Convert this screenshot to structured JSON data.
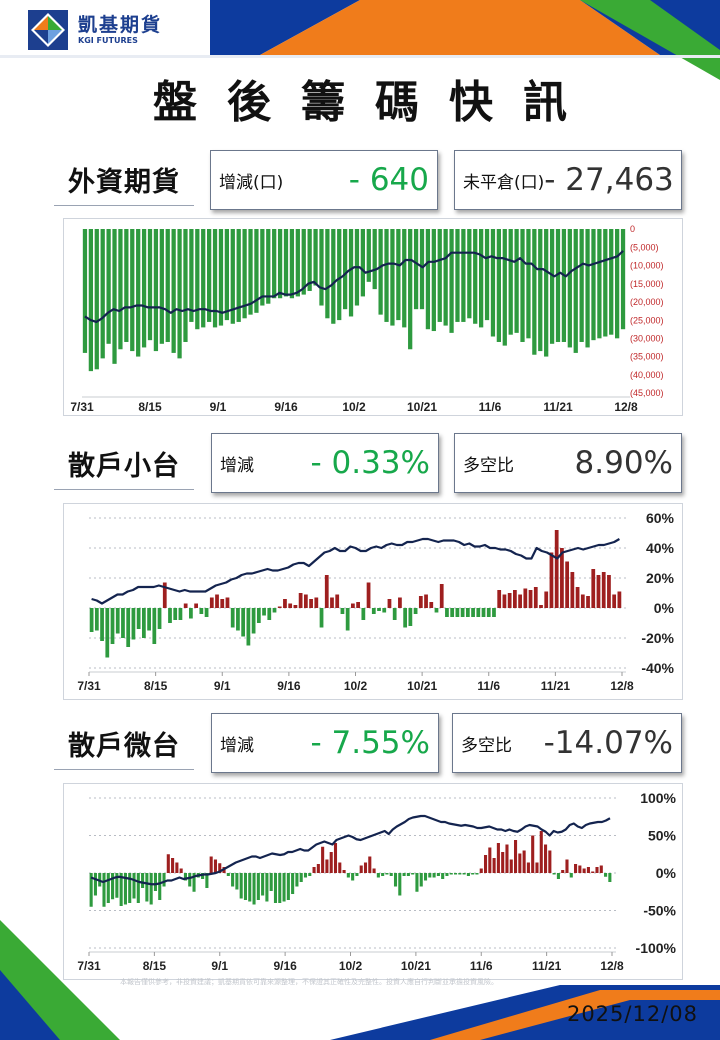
{
  "brand": {
    "name_zh": "凱基期貨",
    "name_en": "KGI FUTURES"
  },
  "colors": {
    "navy": "#1d3f8f",
    "orange": "#f07c1b",
    "green_brand": "#3aaa35",
    "bar_green": "#2e9a3f",
    "bar_red": "#9e1f1f",
    "line": "#14244f"
  },
  "title": "盤後籌碼快訊",
  "date": "2025/12/08",
  "disclaimer": "本報告僅供參考，非投資建議；凱基期貨依可靠來源整理，不保證其正確性及完整性。投資人應自行判斷並承擔投資風險。",
  "sections": [
    {
      "title": "外資期貨",
      "change_label": "增減(口)",
      "change_value": "- 640",
      "ratio_label": "未平倉(口)",
      "ratio_value": "- 27,463"
    },
    {
      "title": "散戶小台",
      "change_label": "增減",
      "change_value": "- 0.33%",
      "ratio_label": "多空比",
      "ratio_value": "8.90%"
    },
    {
      "title": "散戶微台",
      "change_label": "增減",
      "change_value": "- 7.55%",
      "ratio_label": "多空比",
      "ratio_value": "-14.07%"
    }
  ],
  "chart_data": [
    {
      "type": "bar",
      "x_labels": [
        "7/31",
        "8/15",
        "9/1",
        "9/16",
        "10/2",
        "10/21",
        "11/6",
        "11/21",
        "12/8"
      ],
      "y_tick_labels": [
        "0",
        "(5,000)",
        "(10,000)",
        "(15,000)",
        "(20,000)",
        "(25,000)",
        "(30,000)",
        "(35,000)",
        "(40,000)",
        "(45,000)"
      ],
      "ylim": [
        -45000,
        0
      ],
      "series": [
        {
          "type": "bar",
          "values": [
            -34000,
            -39000,
            -38500,
            -35500,
            -31500,
            -37000,
            -33000,
            -31000,
            -33500,
            -35000,
            -32500,
            -30500,
            -33500,
            -31500,
            -31000,
            -34000,
            -35500,
            -31000,
            -25500,
            -27500,
            -27000,
            -25500,
            -27000,
            -26500,
            -25000,
            -26000,
            -25500,
            -24500,
            -23500,
            -23000,
            -21000,
            -20500,
            -19000,
            -19000,
            -18500,
            -19000,
            -18500,
            -18000,
            -17000,
            -15500,
            -21000,
            -24500,
            -26000,
            -25000,
            -22000,
            -24000,
            -21000,
            -18500,
            -14500,
            -16500,
            -23500,
            -25500,
            -26500,
            -25000,
            -27000,
            -33000,
            -22000,
            -22000,
            -27500,
            -28000,
            -25500,
            -26500,
            -28500,
            -25500,
            -25500,
            -24500,
            -26000,
            -27000,
            -25000,
            -29500,
            -31000,
            -32000,
            -29000,
            -28500,
            -31000,
            -30000,
            -34500,
            -33500,
            -35000,
            -31500,
            -31000,
            -31000,
            -32500,
            -34000,
            -31000,
            -32500,
            -30500,
            -30000,
            -29500,
            -29000,
            -30000,
            -27500
          ]
        },
        {
          "type": "line",
          "values": [
            -24000,
            -25000,
            -25500,
            -24500,
            -23000,
            -22000,
            -22500,
            -21500,
            -21500,
            -21000,
            -21000,
            -21500,
            -21500,
            -21500,
            -22000,
            -23000,
            -22000,
            -22500,
            -22000,
            -22500,
            -22000,
            -22000,
            -22500,
            -22500,
            -23000,
            -22500,
            -22000,
            -21500,
            -21000,
            -20500,
            -19500,
            -18500,
            -18500,
            -18500,
            -17500,
            -18000,
            -18000,
            -17500,
            -16500,
            -15000,
            -14500,
            -16000,
            -16500,
            -15500,
            -14000,
            -13000,
            -11500,
            -10500,
            -10500,
            -12000,
            -11500,
            -11000,
            -10000,
            -9500,
            -9500,
            -10000,
            -8500,
            -8500,
            -9500,
            -10500,
            -9000,
            -9000,
            -8500,
            -8000,
            -6500,
            -6500,
            -6500,
            -6500,
            -6500,
            -7000,
            -8000,
            -7500,
            -8000,
            -8000,
            -8500,
            -9000,
            -8000,
            -9500,
            -9500,
            -11000,
            -11000,
            -12000,
            -13000,
            -12000,
            -13000,
            -11500,
            -10500,
            -9500,
            -10000,
            -9500,
            -9000,
            -8500,
            -8000,
            -7500,
            -6000
          ]
        }
      ]
    },
    {
      "type": "bar",
      "x_labels": [
        "7/31",
        "8/15",
        "9/1",
        "9/16",
        "10/2",
        "10/21",
        "11/6",
        "11/21",
        "12/8"
      ],
      "y_tick_labels": [
        "60%",
        "40%",
        "20%",
        "0%",
        "-20%",
        "-40%"
      ],
      "ylim": [
        -40,
        60
      ],
      "series": [
        {
          "type": "bar",
          "values": [
            -16,
            -15,
            -22,
            -33,
            -24,
            -17,
            -20,
            -26,
            -21,
            -14,
            -20,
            -15,
            -24,
            -14,
            17,
            -10,
            -8,
            -8,
            3,
            -7,
            3,
            -4,
            -6,
            7,
            9,
            6,
            7,
            -13,
            -15,
            -19,
            -25,
            -17,
            -10,
            -5,
            -8,
            -3,
            1,
            6,
            3,
            2,
            10,
            9,
            6,
            7,
            -13,
            22,
            7,
            9,
            -4,
            -15,
            3,
            4,
            -8,
            17,
            -4,
            -2,
            -3,
            6,
            -8,
            7,
            -13,
            -12,
            -4,
            8,
            9,
            4,
            -3,
            16,
            -6,
            -6,
            -6,
            -6,
            -6,
            -6,
            -6,
            -6,
            -6,
            -6,
            12,
            9,
            10,
            12,
            9,
            13,
            12,
            14,
            2,
            11,
            37,
            52,
            40,
            31,
            24,
            14,
            9,
            8,
            26,
            22,
            24,
            22,
            9,
            11
          ]
        },
        {
          "type": "line",
          "values": [
            6,
            5,
            3,
            5,
            7,
            9,
            9,
            11,
            12,
            14,
            14,
            14,
            14,
            15,
            14,
            13,
            12,
            11,
            12,
            11,
            11,
            11,
            11,
            13,
            15,
            16,
            17,
            19,
            20,
            22,
            23,
            23,
            24,
            25,
            26,
            25,
            25,
            26,
            27,
            29,
            30,
            30,
            28,
            31,
            34,
            37,
            38,
            40,
            38,
            38,
            41,
            40,
            38,
            38,
            40,
            41,
            40,
            42,
            43,
            42,
            42,
            44,
            44,
            45,
            46,
            46,
            45,
            44,
            45,
            45,
            45,
            44,
            42,
            43,
            41,
            41,
            42,
            40,
            40,
            39,
            39,
            38,
            36,
            35,
            33,
            33,
            40,
            38,
            37,
            35,
            33,
            37,
            38,
            39,
            40,
            39,
            40,
            41,
            42,
            42,
            43,
            44,
            46
          ]
        }
      ]
    },
    {
      "type": "bar",
      "x_labels": [
        "7/31",
        "8/15",
        "9/1",
        "9/16",
        "10/2",
        "10/21",
        "11/6",
        "11/21",
        "12/8"
      ],
      "y_tick_labels": [
        "100%",
        "50%",
        "0%",
        "-50%",
        "-100%"
      ],
      "ylim": [
        -100,
        100
      ],
      "series": [
        {
          "type": "bar",
          "values": [
            -45,
            -30,
            -18,
            -45,
            -40,
            -35,
            -33,
            -44,
            -42,
            -40,
            -34,
            -40,
            -20,
            -38,
            -42,
            -24,
            -36,
            -18,
            25,
            20,
            14,
            6,
            -10,
            -18,
            -25,
            -6,
            -8,
            -20,
            22,
            18,
            13,
            8,
            -4,
            -18,
            -22,
            -34,
            -36,
            -38,
            -42,
            -36,
            -30,
            -38,
            -24,
            -40,
            -40,
            -38,
            -36,
            -28,
            -18,
            -12,
            -6,
            -4,
            8,
            12,
            35,
            18,
            28,
            40,
            14,
            4,
            -6,
            -10,
            -4,
            10,
            14,
            22,
            6,
            -6,
            -4,
            -2,
            -4,
            -18,
            -30,
            -4,
            -4,
            -2,
            -25,
            -18,
            -10,
            -6,
            -6,
            -4,
            -8,
            -4,
            -2,
            -2,
            -2,
            -2,
            -4,
            -2,
            -2,
            6,
            24,
            34,
            20,
            40,
            28,
            38,
            18,
            44,
            26,
            30,
            14,
            50,
            14,
            56,
            38,
            30,
            -2,
            -8,
            4,
            18,
            -6,
            12,
            10,
            6,
            8,
            2,
            8,
            10,
            -5,
            -12
          ]
        },
        {
          "type": "line",
          "values": [
            -6,
            -8,
            -10,
            -12,
            -10,
            -8,
            -6,
            -5,
            -6,
            -7,
            -8,
            -10,
            -12,
            -13,
            -14,
            -15,
            -15,
            -14,
            -12,
            -10,
            -10,
            -8,
            -6,
            -8,
            -7,
            -6,
            -4,
            -3,
            -2,
            -2,
            -1,
            0,
            2,
            5,
            8,
            11,
            14,
            16,
            18,
            20,
            22,
            22,
            20,
            22,
            24,
            26,
            25,
            24,
            25,
            28,
            28,
            30,
            32,
            30,
            30,
            34,
            38,
            40,
            42,
            40,
            38,
            44,
            46,
            48,
            50,
            48,
            45,
            44,
            46,
            48,
            50,
            52,
            54,
            56,
            52,
            58,
            62,
            65,
            68,
            72,
            74,
            75,
            76,
            76,
            74,
            72,
            70,
            68,
            68,
            66,
            65,
            64,
            63,
            64,
            63,
            62,
            60,
            60,
            61,
            62,
            60,
            58,
            58,
            56,
            58,
            56,
            55,
            58,
            62,
            64,
            63,
            62,
            58,
            55,
            50,
            56,
            54,
            55,
            58,
            64,
            66,
            62,
            60,
            64,
            66,
            67,
            68,
            68,
            70,
            73
          ]
        }
      ]
    }
  ]
}
